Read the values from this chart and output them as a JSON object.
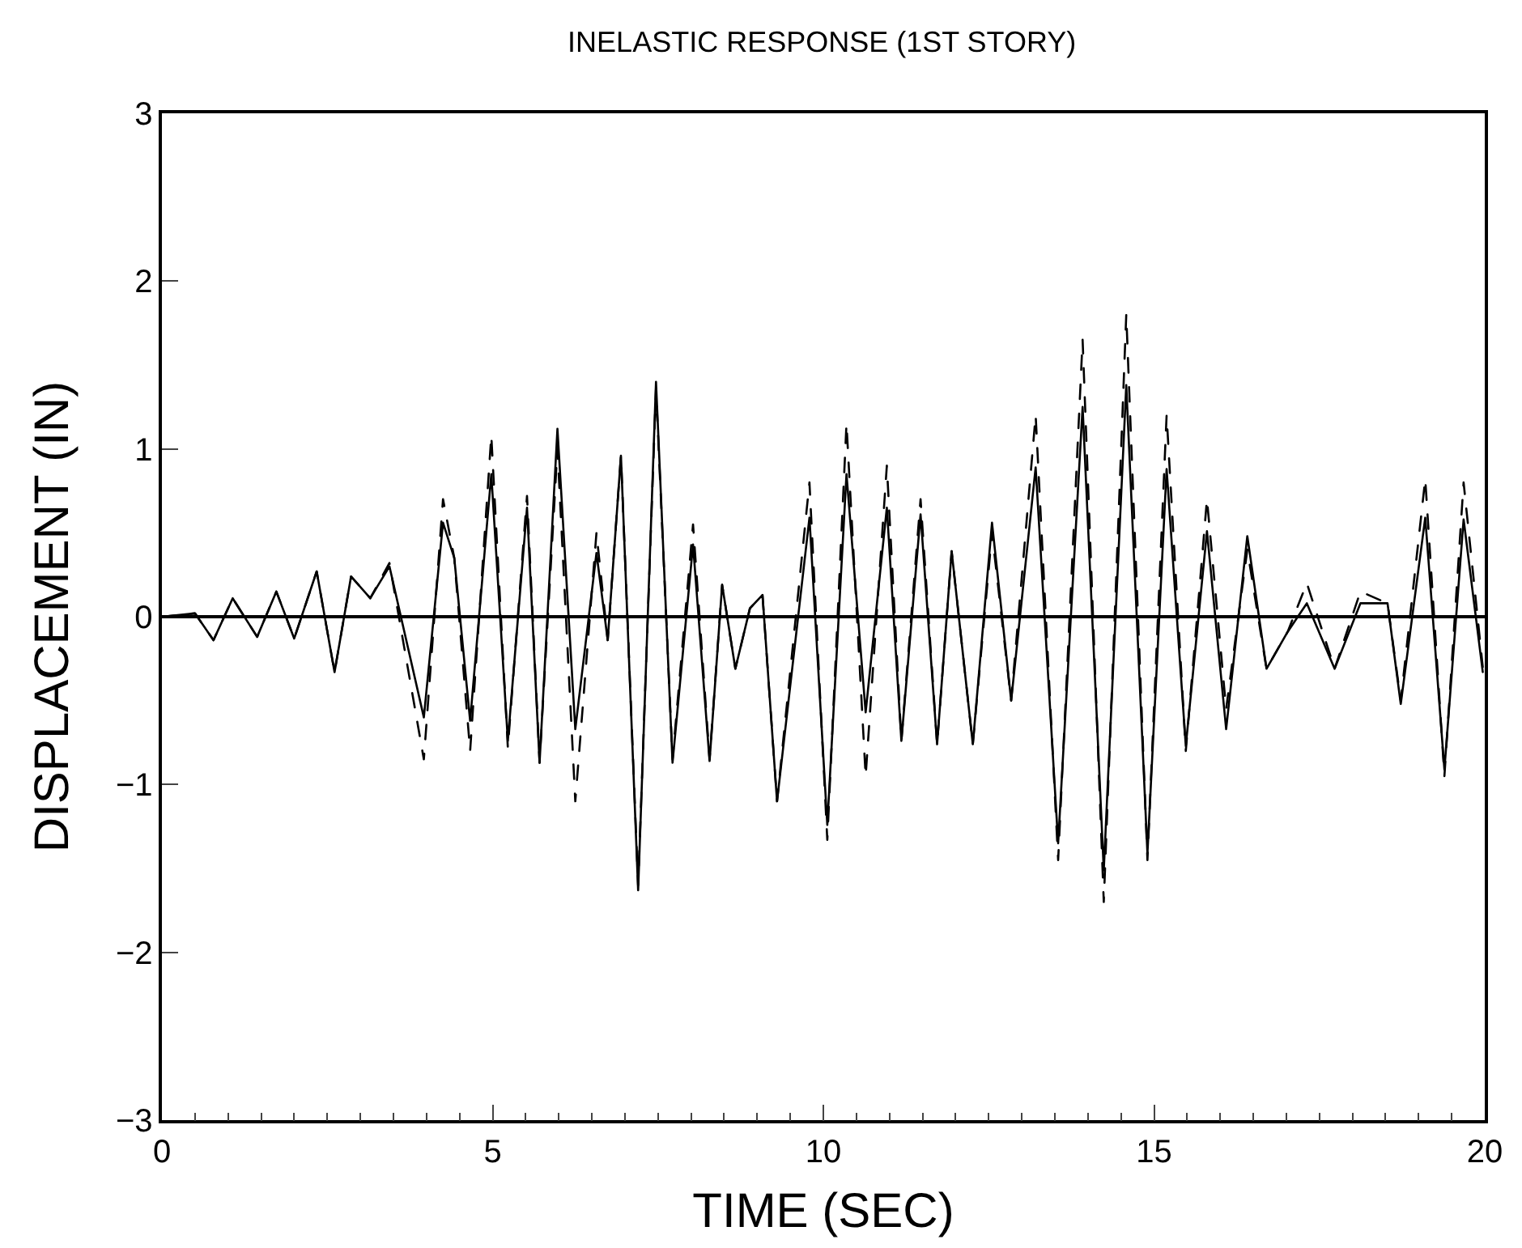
{
  "chart_data": {
    "type": "line",
    "title": "INELASTIC RESPONSE (1ST STORY)",
    "xlabel": "TIME (SEC)",
    "ylabel": "DISPLACEMENT (IN)",
    "xlim": [
      0,
      20
    ],
    "xticks": [
      0,
      5,
      10,
      15,
      20
    ],
    "ylim": [
      -3,
      3
    ],
    "yticks": [
      -3,
      -2,
      -1,
      0,
      1,
      2,
      3
    ],
    "marker": "none",
    "ref_lines": [
      {
        "axis": "y",
        "value": 0,
        "color": "#000000"
      }
    ],
    "series": [
      {
        "color": "#000000",
        "line_style": "solid",
        "x": [
          0,
          0.5,
          0.78,
          1.07,
          1.44,
          1.73,
          2.0,
          2.34,
          2.61,
          2.86,
          3.15,
          3.44,
          3.96,
          4.25,
          4.42,
          4.66,
          4.98,
          5.23,
          5.52,
          5.71,
          5.98,
          6.25,
          6.57,
          6.74,
          6.94,
          7.2,
          7.47,
          7.72,
          8.03,
          8.28,
          8.47,
          8.67,
          8.89,
          9.08,
          9.3,
          9.79,
          10.06,
          10.35,
          10.64,
          10.96,
          11.18,
          11.47,
          11.72,
          11.94,
          12.26,
          12.55,
          12.84,
          13.21,
          13.55,
          13.92,
          14.24,
          14.58,
          14.9,
          15.19,
          15.48,
          15.8,
          16.09,
          16.41,
          16.7,
          17.02,
          17.31,
          17.73,
          18.12,
          18.53,
          18.73,
          19.1,
          19.39,
          19.68,
          19.97
        ],
        "values": [
          0,
          0.02,
          -0.14,
          0.11,
          -0.12,
          0.15,
          -0.13,
          0.27,
          -0.33,
          0.24,
          0.11,
          0.3,
          -0.6,
          0.56,
          0.35,
          -0.62,
          0.85,
          -0.74,
          0.65,
          -0.87,
          1.12,
          -0.67,
          0.38,
          -0.14,
          0.96,
          -1.63,
          1.4,
          -0.87,
          0.43,
          -0.86,
          0.19,
          -0.31,
          0.05,
          0.13,
          -1.1,
          0.59,
          -1.24,
          0.85,
          -0.57,
          0.65,
          -0.74,
          0.61,
          -0.76,
          0.39,
          -0.76,
          0.56,
          -0.5,
          0.89,
          -1.35,
          1.25,
          -1.51,
          1.38,
          -1.41,
          0.88,
          -0.77,
          0.51,
          -0.67,
          0.48,
          -0.31,
          -0.09,
          0.08,
          -0.31,
          0.08,
          0.08,
          -0.52,
          0.59,
          -0.91,
          0.58,
          -0.33
        ]
      },
      {
        "color": "#000000",
        "line_style": "dashed",
        "x": [
          0,
          0.5,
          0.78,
          1.07,
          1.44,
          1.73,
          2.0,
          2.34,
          2.61,
          2.86,
          3.15,
          3.44,
          3.96,
          4.25,
          4.42,
          4.66,
          4.98,
          5.23,
          5.52,
          5.71,
          5.98,
          6.25,
          6.57,
          6.74,
          6.94,
          7.2,
          7.47,
          7.72,
          8.03,
          8.28,
          8.47,
          8.67,
          8.89,
          9.08,
          9.3,
          9.79,
          10.06,
          10.35,
          10.64,
          10.96,
          11.18,
          11.47,
          11.72,
          11.94,
          12.26,
          12.55,
          12.84,
          13.21,
          13.55,
          13.92,
          14.24,
          14.58,
          14.9,
          15.19,
          15.48,
          15.8,
          16.09,
          16.41,
          16.7,
          17.02,
          17.31,
          17.73,
          18.12,
          18.53,
          18.73,
          19.1,
          19.39,
          19.68,
          19.97
        ],
        "values": [
          0,
          0.02,
          -0.14,
          0.11,
          -0.12,
          0.15,
          -0.13,
          0.27,
          -0.33,
          0.24,
          0.11,
          0.32,
          -0.85,
          0.7,
          0.35,
          -0.8,
          1.08,
          -0.78,
          0.72,
          -0.87,
          1.0,
          -1.1,
          0.5,
          -0.14,
          0.96,
          -1.6,
          1.36,
          -0.85,
          0.55,
          -0.85,
          0.19,
          -0.31,
          0.05,
          0.13,
          -1.1,
          0.8,
          -1.33,
          1.15,
          -0.95,
          0.9,
          -0.74,
          0.7,
          -0.76,
          0.39,
          -0.76,
          0.5,
          -0.5,
          1.2,
          -1.45,
          1.65,
          -1.7,
          1.8,
          -1.45,
          1.2,
          -0.8,
          0.7,
          -0.55,
          0.4,
          -0.31,
          -0.09,
          0.2,
          -0.31,
          0.15,
          0.08,
          -0.5,
          0.82,
          -0.95,
          0.8,
          -0.3
        ]
      }
    ]
  }
}
